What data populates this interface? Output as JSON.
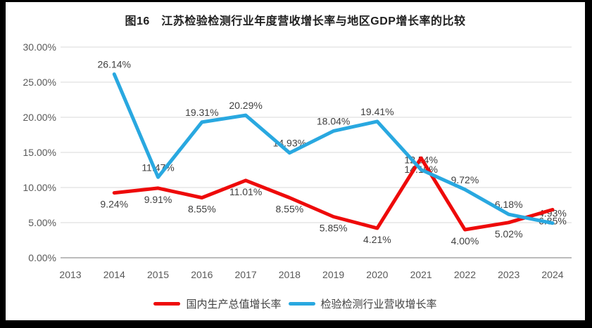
{
  "title": "图16　江苏检验检测行业年度营收增长率与地区GDP增长率的比较",
  "legend": {
    "items": [
      {
        "label": "国内生产总值增长率",
        "color": "#ee0a0a"
      },
      {
        "label": "检验检测行业营收增长率",
        "color": "#29a8e0"
      }
    ]
  },
  "chart_data": {
    "type": "line",
    "title": "图16　江苏检验检测行业年度营收增长率与地区GDP增长率的比较",
    "categories": [
      "2013",
      "2014",
      "2015",
      "2016",
      "2017",
      "2018",
      "2019",
      "2020",
      "2021",
      "2022",
      "2023",
      "2024"
    ],
    "series": [
      {
        "name": "国内生产总值增长率",
        "color": "#ee0a0a",
        "label_position": "below",
        "values": [
          null,
          9.24,
          9.91,
          8.55,
          11.01,
          8.55,
          5.85,
          4.21,
          14.19,
          4.0,
          5.02,
          6.85
        ]
      },
      {
        "name": "检验检测行业营收增长率",
        "color": "#29a8e0",
        "label_position": "above",
        "values": [
          null,
          26.14,
          11.47,
          19.31,
          20.29,
          14.93,
          18.04,
          19.41,
          12.54,
          9.72,
          6.18,
          4.93
        ]
      }
    ],
    "xlabel": "",
    "ylabel": "",
    "ylim": [
      0,
      30
    ],
    "ytick_step": 5,
    "yticks": [
      "0.00%",
      "5.00%",
      "10.00%",
      "15.00%",
      "20.00%",
      "25.00%",
      "30.00%"
    ],
    "grid": "horizontal",
    "data_labels": true,
    "legend_position": "bottom",
    "colors": {
      "gridline": "#d9d9d9",
      "axis_line": "#a6a6a6",
      "axis_text": "#595959",
      "data_label": "#3f3f3f",
      "background": "#ffffff",
      "frame": "#000000"
    }
  }
}
